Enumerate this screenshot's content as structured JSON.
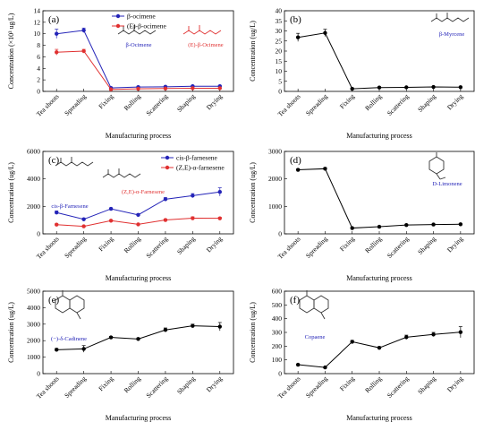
{
  "figure": {
    "xlabel": "Manufacturing process",
    "categories": [
      "Tea shoots",
      "Spreading",
      "Fixing",
      "Rolling",
      "Scattering",
      "Shaping",
      "Drying"
    ]
  },
  "chart_data": [
    {
      "panel": "(a)",
      "type": "line",
      "ylabel": "Concentration (×10³ ug/L)",
      "ylim": [
        0,
        14
      ],
      "yticks": [
        0,
        2,
        4,
        6,
        8,
        10,
        12,
        14
      ],
      "series": [
        {
          "name": "β-ocimene",
          "color": "#2424b8",
          "values": [
            10.0,
            10.6,
            0.6,
            0.75,
            0.8,
            0.9,
            0.9
          ],
          "errors": [
            0.8,
            0.4,
            0.1,
            0.1,
            0.1,
            0.1,
            0.1
          ]
        },
        {
          "name": "(E)-β-ocimene",
          "color": "#e03030",
          "values": [
            6.8,
            7.0,
            0.35,
            0.45,
            0.5,
            0.55,
            0.55
          ],
          "errors": [
            0.5,
            0.3,
            0.05,
            0.05,
            0.05,
            0.05,
            0.05
          ]
        }
      ],
      "molecules": [
        {
          "label": "β-Ocimene",
          "color": "#2424b8"
        },
        {
          "label": "(E)-β-Ocimene",
          "color": "#e03030"
        }
      ]
    },
    {
      "panel": "(b)",
      "type": "line",
      "ylabel": "Concentration (ug/L)",
      "ylim": [
        0,
        40
      ],
      "yticks": [
        0,
        5,
        10,
        15,
        20,
        25,
        30,
        35,
        40
      ],
      "series": [
        {
          "name": "",
          "color": "#000000",
          "values": [
            26.8,
            29.0,
            1.3,
            1.9,
            2.0,
            2.2,
            2.1
          ],
          "errors": [
            2.0,
            1.8,
            0.2,
            0.2,
            0.2,
            0.2,
            0.2
          ]
        }
      ],
      "molecules": [
        {
          "label": "β-Myrcene",
          "color": "#2424b8"
        }
      ]
    },
    {
      "panel": "(c)",
      "type": "line",
      "ylabel": "Concentration (ug/L)",
      "ylim": [
        0,
        6000
      ],
      "yticks": [
        0,
        2000,
        4000,
        6000
      ],
      "series": [
        {
          "name": "cis-β-farnesene",
          "color": "#2424b8",
          "values": [
            1550,
            1060,
            1820,
            1380,
            2520,
            2780,
            3050
          ],
          "errors": [
            120,
            80,
            80,
            80,
            120,
            150,
            300
          ]
        },
        {
          "name": "(Z,E)-α-farnesene",
          "color": "#e03030",
          "values": [
            670,
            550,
            960,
            690,
            1010,
            1140,
            1130
          ],
          "errors": [
            50,
            40,
            50,
            40,
            80,
            100,
            80
          ]
        }
      ],
      "molecules": [
        {
          "label": "cis-β-Farnesene",
          "color": "#2424b8"
        },
        {
          "label": "(Z,E)-α-Farnesene",
          "color": "#e03030"
        }
      ]
    },
    {
      "panel": "(d)",
      "type": "line",
      "ylabel": "Concentration (ug/L)",
      "ylim": [
        0,
        3000
      ],
      "yticks": [
        0,
        1000,
        2000,
        3000
      ],
      "series": [
        {
          "name": "",
          "color": "#000000",
          "values": [
            2330,
            2370,
            210,
            260,
            320,
            340,
            350
          ],
          "errors": [
            40,
            40,
            20,
            20,
            20,
            20,
            20
          ]
        }
      ],
      "molecules": [
        {
          "label": "D-Limonene",
          "color": "#2424b8"
        }
      ]
    },
    {
      "panel": "(e)",
      "type": "line",
      "ylabel": "Concentration (ug/L)",
      "ylim": [
        0,
        5000
      ],
      "yticks": [
        0,
        1000,
        2000,
        3000,
        4000,
        5000
      ],
      "series": [
        {
          "name": "",
          "color": "#000000",
          "values": [
            1450,
            1500,
            2200,
            2100,
            2650,
            2900,
            2850
          ],
          "errors": [
            80,
            200,
            60,
            60,
            120,
            100,
            250
          ]
        }
      ],
      "molecules": [
        {
          "label": "(−)-δ-Cadinene",
          "color": "#2424b8"
        }
      ]
    },
    {
      "panel": "(f)",
      "type": "line",
      "ylabel": "Concentration (ug/L)",
      "ylim": [
        0,
        600
      ],
      "yticks": [
        0,
        100,
        200,
        300,
        400,
        500,
        600
      ],
      "series": [
        {
          "name": "",
          "color": "#000000",
          "values": [
            65,
            45,
            232,
            188,
            265,
            285,
            302
          ],
          "errors": [
            5,
            5,
            10,
            8,
            15,
            15,
            40
          ]
        }
      ],
      "molecules": [
        {
          "label": "Copaene",
          "color": "#2424b8"
        }
      ]
    }
  ]
}
